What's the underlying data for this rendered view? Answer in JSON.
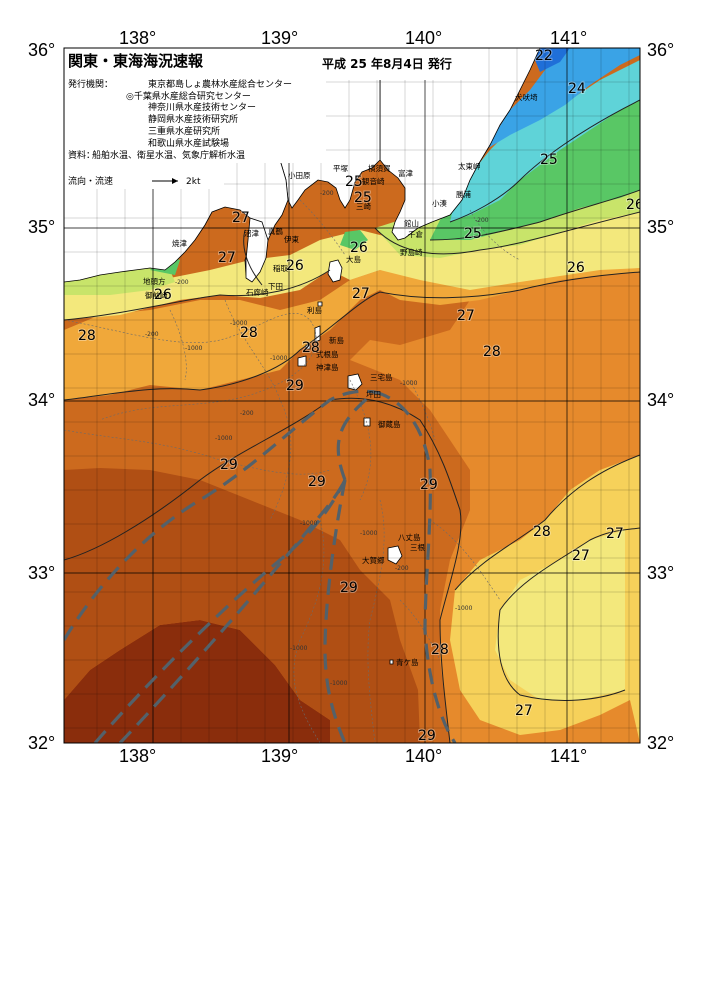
{
  "header": {
    "title": "関東・東海海況速報",
    "date": "平成 25 年8月4日 発行",
    "issuer_label": "発行機関：",
    "issuers": [
      "東京都島しょ農林水産総合センター",
      "◎千葉県水産総合研究センター",
      "神奈川県水産技術センター",
      "静岡県水産技術研究所",
      "三重県水産研究所",
      "和歌山県水産試験場"
    ],
    "source_label": "資料：",
    "source": "船舶水温、衛星水温、気象庁解析水温",
    "current_label": "流向・流速",
    "current_scale": "2kt"
  },
  "axes": {
    "lon_labels": [
      "138°",
      "139°",
      "140°",
      "141°"
    ],
    "lat_labels": [
      "36°",
      "35°",
      "34°",
      "33°",
      "32°"
    ]
  },
  "isotherm_labels": [
    "22",
    "24",
    "25",
    "25",
    "26",
    "26",
    "26",
    "27",
    "27",
    "27",
    "27",
    "28",
    "28",
    "28",
    "28",
    "29",
    "29",
    "29",
    "29",
    "29",
    "29",
    "28",
    "28",
    "27",
    "27",
    "27",
    "26",
    "26",
    "25",
    "25"
  ],
  "place_names": [
    "犬吠埼",
    "太東岬",
    "勝浦",
    "小湊",
    "館山",
    "千倉",
    "野島崎",
    "平塚",
    "横須賀",
    "小田原",
    "富津",
    "観音崎",
    "真鶴",
    "三崎",
    "沼津",
    "伊東",
    "稲取",
    "大島",
    "焼津",
    "下田",
    "石廊崎",
    "御前崎",
    "地頭方",
    "利島",
    "新島",
    "式根島",
    "神津島",
    "三宅島",
    "坪田",
    "御蔵島",
    "八丈島",
    "三根",
    "大賀郷",
    "青ケ島"
  ],
  "depth_labels": [
    "-200",
    "-200",
    "-1000",
    "-200",
    "-1000",
    "-200",
    "-1000",
    "-1000",
    "-1000",
    "-1000",
    "-200",
    "-1000",
    "-200",
    "-1000",
    "-1000",
    "-1000"
  ],
  "colors": {
    "t22": "#1f6fd8",
    "t23": "#3aa3e6",
    "t24": "#5fd3d8",
    "t25": "#59c765",
    "t26": "#c8e46a",
    "t27": "#f3e87c",
    "t27b": "#f6d15a",
    "t28": "#f0a83a",
    "t28b": "#e68a2c",
    "t29": "#cc6a1e",
    "t29b": "#b04f14",
    "t30": "#8a2d0c",
    "land": "#ffffff",
    "current": "#53616a",
    "grid": "#555555"
  }
}
